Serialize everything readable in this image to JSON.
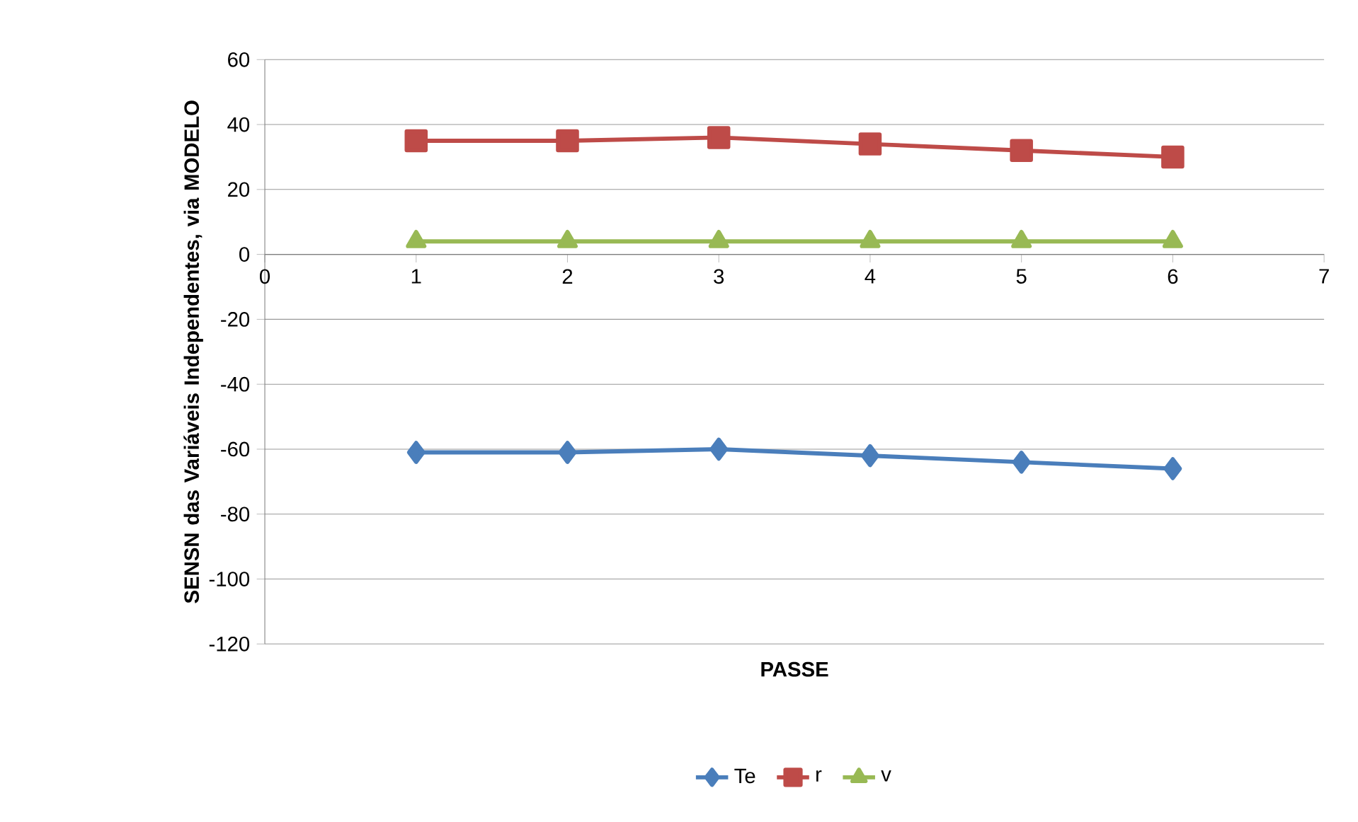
{
  "chart_data": {
    "type": "line",
    "xlabel": "PASSE",
    "ylabel": "SENSN das Variáveis Independentes, via MODELO",
    "x": [
      1,
      2,
      3,
      4,
      5,
      6
    ],
    "series": [
      {
        "name": "Te",
        "color": "#4a7ebb",
        "marker": "diamond",
        "values": [
          -61,
          -61,
          -60,
          -62,
          -64,
          -66
        ]
      },
      {
        "name": "r",
        "color": "#be4b48",
        "marker": "square",
        "values": [
          35,
          35,
          36,
          34,
          32,
          30
        ]
      },
      {
        "name": "v",
        "color": "#98b954",
        "marker": "triangle",
        "values": [
          4,
          4,
          4,
          4,
          4,
          4
        ]
      }
    ],
    "xlim": [
      0,
      7
    ],
    "xticks": [
      0,
      1,
      2,
      3,
      4,
      5,
      6,
      7
    ],
    "ylim": [
      -120,
      60
    ],
    "yticks": [
      -120,
      -100,
      -80,
      -60,
      -40,
      -20,
      0,
      20,
      40,
      60
    ],
    "grid": "y",
    "legend": "bottom",
    "line_style": "solid"
  }
}
